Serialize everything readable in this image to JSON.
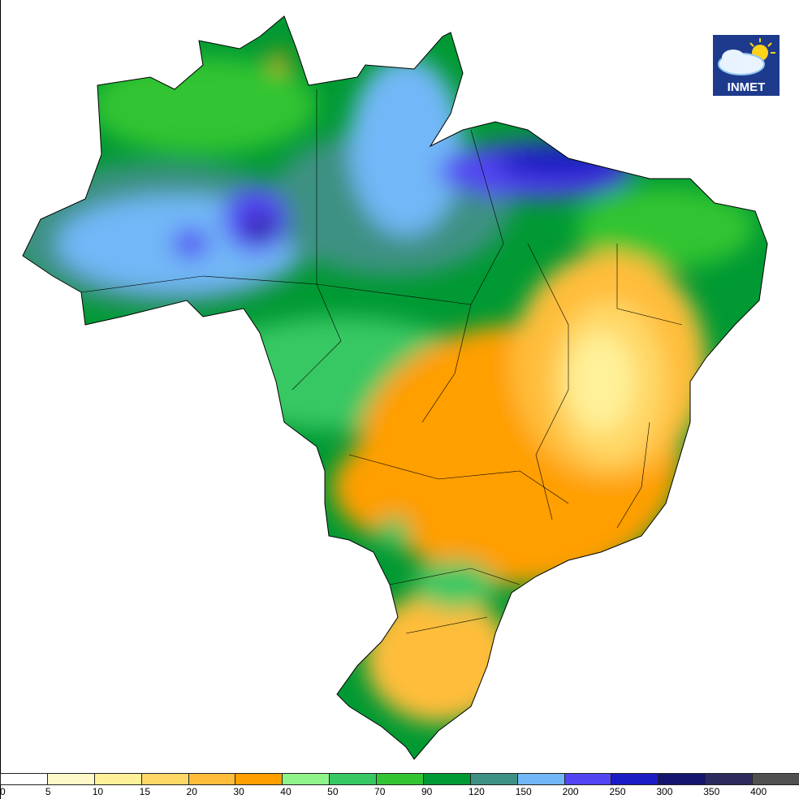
{
  "logo": {
    "text": "INMET",
    "icon": "cloud-sun-icon"
  },
  "legend": {
    "labels": [
      "0",
      "5",
      "10",
      "15",
      "20",
      "30",
      "40",
      "50",
      "70",
      "90",
      "120",
      "150",
      "200",
      "250",
      "300",
      "350",
      "400"
    ],
    "colors": [
      "#ffffff",
      "#fff8c8",
      "#fff19a",
      "#ffd867",
      "#ffbd3a",
      "#ff9f00",
      "#8ff58a",
      "#37c864",
      "#33c433",
      "#009933",
      "#3d9182",
      "#72b7f7",
      "#5245f2",
      "#1c1cc4",
      "#151570",
      "#2d2b5e",
      "#505050"
    ]
  },
  "map": {
    "region": "Brazil",
    "colors": {
      "land_base": "#009933",
      "border": "#000000"
    }
  }
}
